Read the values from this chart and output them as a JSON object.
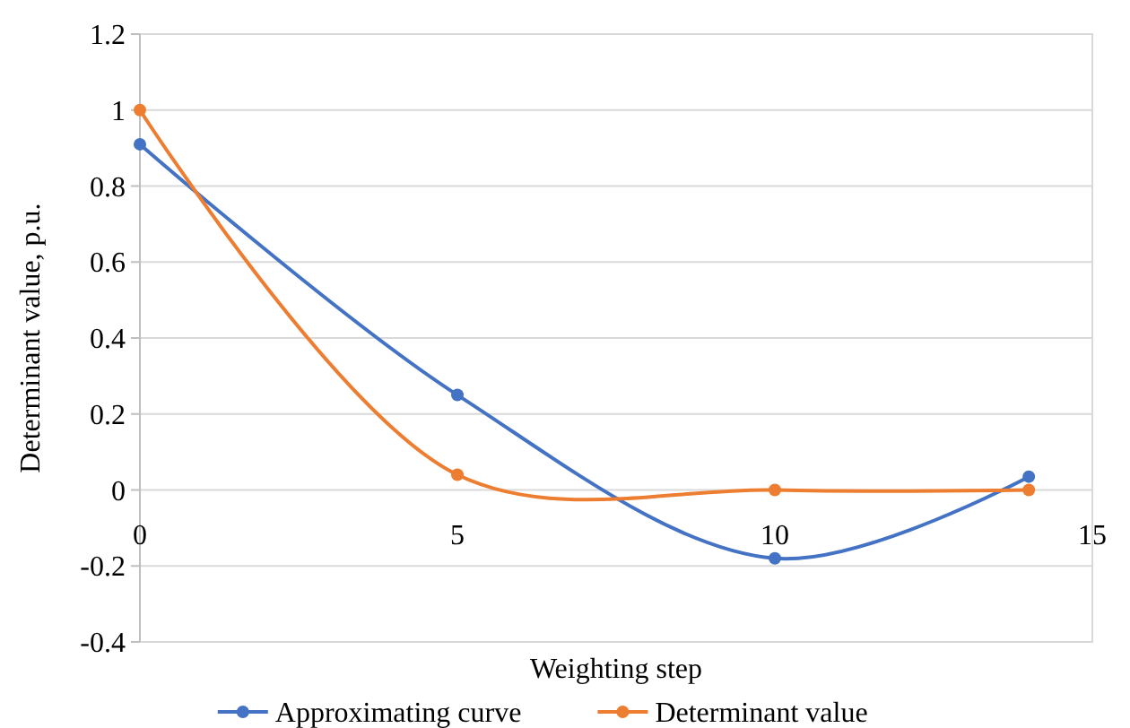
{
  "chart_data": {
    "type": "line",
    "xlabel": "Weighting step",
    "ylabel": "Determinant value, p.u.",
    "xlim": [
      0,
      15
    ],
    "xticks": [
      0,
      5,
      10,
      15
    ],
    "ylim": [
      -0.4,
      1.2
    ],
    "yticks": [
      {
        "value": -0.4,
        "label": "-0.4"
      },
      {
        "value": -0.2,
        "label": "-0.2"
      },
      0,
      0.2,
      0.4,
      0.6,
      0.8,
      1,
      1.2
    ],
    "grid": "y",
    "legend": "bottom",
    "marker": "circle",
    "line_style": "solid",
    "series": [
      {
        "name": "Approximating curve",
        "color": "#4472c4",
        "x": [
          0,
          5,
          10,
          14
        ],
        "values": [
          0.91,
          0.25,
          -0.18,
          0.035
        ]
      },
      {
        "name": "Determinant value",
        "color": "#ed7d31",
        "x": [
          0,
          5,
          10,
          14
        ],
        "values": [
          1,
          0.04,
          0,
          0
        ]
      }
    ]
  }
}
